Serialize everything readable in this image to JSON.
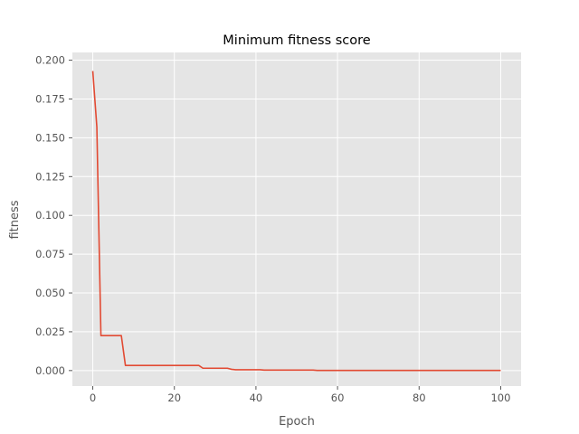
{
  "chart_data": {
    "type": "line",
    "title": "Minimum fitness score",
    "xlabel": "Epoch",
    "ylabel": "fitness",
    "xlim": [
      -5,
      105
    ],
    "ylim": [
      -0.01,
      0.205
    ],
    "x_ticks": [
      0,
      20,
      40,
      60,
      80,
      100
    ],
    "x_tick_labels": [
      "0",
      "20",
      "40",
      "60",
      "80",
      "100"
    ],
    "y_ticks": [
      0.0,
      0.025,
      0.05,
      0.075,
      0.1,
      0.125,
      0.15,
      0.175,
      0.2
    ],
    "y_tick_labels": [
      "0.000",
      "0.025",
      "0.050",
      "0.075",
      "0.100",
      "0.125",
      "0.150",
      "0.175",
      "0.200"
    ],
    "grid": true,
    "background_color": "#e5e5e5",
    "grid_color": "#ffffff",
    "series": [
      {
        "color": "#e24a33",
        "x": [
          0,
          1,
          2,
          3,
          4,
          5,
          6,
          7,
          8,
          9,
          10,
          20,
          26,
          27,
          30,
          33,
          34,
          35,
          40,
          41,
          42,
          45,
          50,
          54,
          55,
          60,
          70,
          80,
          90,
          100
        ],
        "y": [
          0.193,
          0.157,
          0.0225,
          0.0225,
          0.0225,
          0.0225,
          0.0225,
          0.0225,
          0.0033,
          0.0033,
          0.0033,
          0.0033,
          0.0033,
          0.0015,
          0.0015,
          0.0015,
          0.0008,
          0.0005,
          0.0005,
          0.0005,
          0.0003,
          0.0003,
          0.0003,
          0.0003,
          0.0001,
          0.0001,
          0.0001,
          0.0001,
          0.0001,
          0.0001
        ]
      }
    ]
  }
}
